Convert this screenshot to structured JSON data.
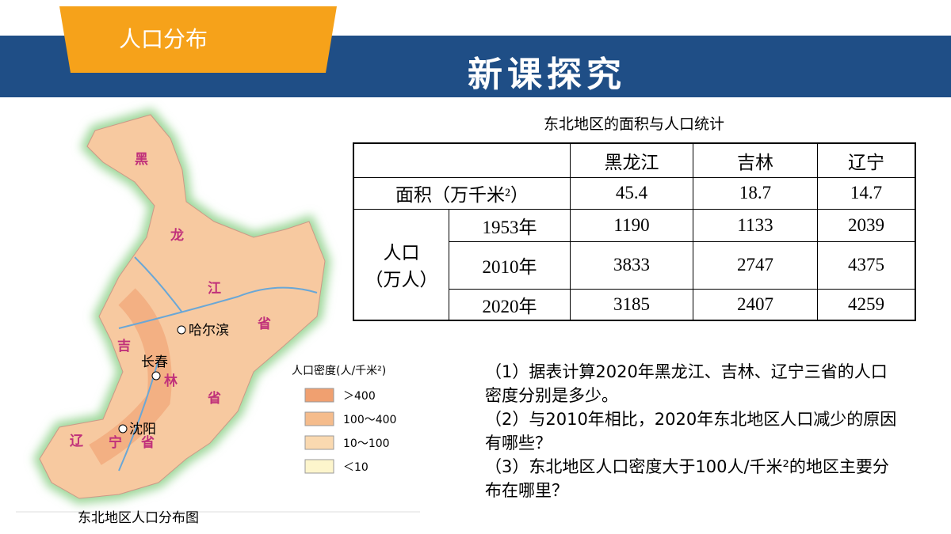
{
  "header": {
    "tab": "人口分布",
    "title": "新课探究"
  },
  "map": {
    "labels": {
      "hei": "黑",
      "long": "龙",
      "jiang": "江",
      "sheng1": "省",
      "ji": "吉",
      "lin": "林",
      "sheng2": "省",
      "liao": "辽",
      "ning": "宁",
      "sheng3": "省"
    },
    "cities": [
      "哈尔滨",
      "长春",
      "沈阳"
    ],
    "legend": {
      "title": "人口密度(人/千米²)",
      "items": [
        "＞400",
        "100～400",
        "10～100",
        "＜10"
      ]
    },
    "caption": "东北地区人口分布图"
  },
  "table": {
    "caption": "东北地区的面积与人口统计",
    "columns": [
      "黑龙江",
      "吉林",
      "辽宁"
    ],
    "area": {
      "label": "面积（万千米²）",
      "values": [
        45.4,
        18.7,
        14.7
      ]
    },
    "population": {
      "label": [
        "人口",
        "（万人）"
      ],
      "rows": [
        {
          "year": "1953年",
          "values": [
            1190,
            1133,
            2039
          ]
        },
        {
          "year": "2010年",
          "values": [
            3833,
            2747,
            4375
          ]
        },
        {
          "year": "2020年",
          "values": [
            3185,
            2407,
            4259
          ]
        }
      ]
    }
  },
  "questions": [
    "（1）据表计算2020年黑龙江、吉林、辽宁三省的人口密度分别是多少。",
    "（2）与2010年相比，2020年东北地区人口减少的原因有哪些？",
    "（3）东北地区人口密度大于100人/千米²的地区主要分布在哪里？"
  ]
}
